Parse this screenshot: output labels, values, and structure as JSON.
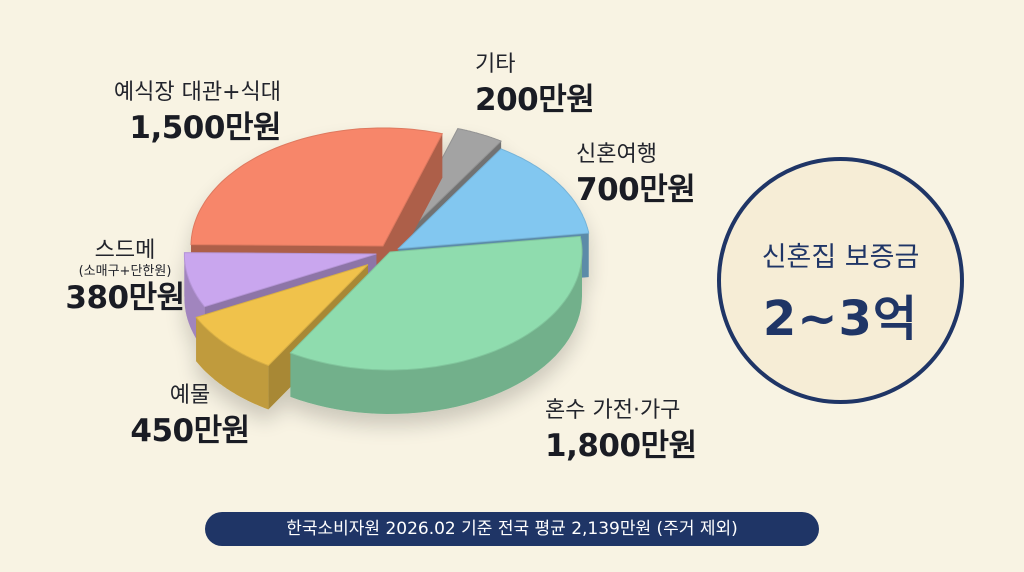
{
  "chart_data": {
    "type": "pie",
    "title": "",
    "unit": "만원",
    "slices": [
      {
        "label": "기타",
        "value": 200,
        "value_label": "200만원",
        "color": "#a3a3a3"
      },
      {
        "label": "신혼여행",
        "value": 700,
        "value_label": "700만원",
        "color": "#82c7f0"
      },
      {
        "label": "혼수 가전·가구",
        "value": 1800,
        "value_label": "1,800만원",
        "color": "#8fdcae"
      },
      {
        "label": "예물",
        "value": 450,
        "value_label": "450만원",
        "color": "#f0c24c"
      },
      {
        "label": "스드메",
        "sublabel": "(소매구+단한원)",
        "value": 380,
        "value_label": "380만원",
        "color": "#c9a6ee"
      },
      {
        "label": "예식장 대관+식대",
        "value": 1500,
        "value_label": "1,500만원",
        "color": "#f7866a"
      }
    ]
  },
  "badge": {
    "line1": "신혼집 보증금",
    "line2": "2~3억"
  },
  "footer": {
    "text": "한국소비자원 2026.02 기준 전국 평균 2,139만원 (주거 제외)"
  },
  "colors": {
    "navy": "#1f3566",
    "background": "#f8f3e3"
  }
}
